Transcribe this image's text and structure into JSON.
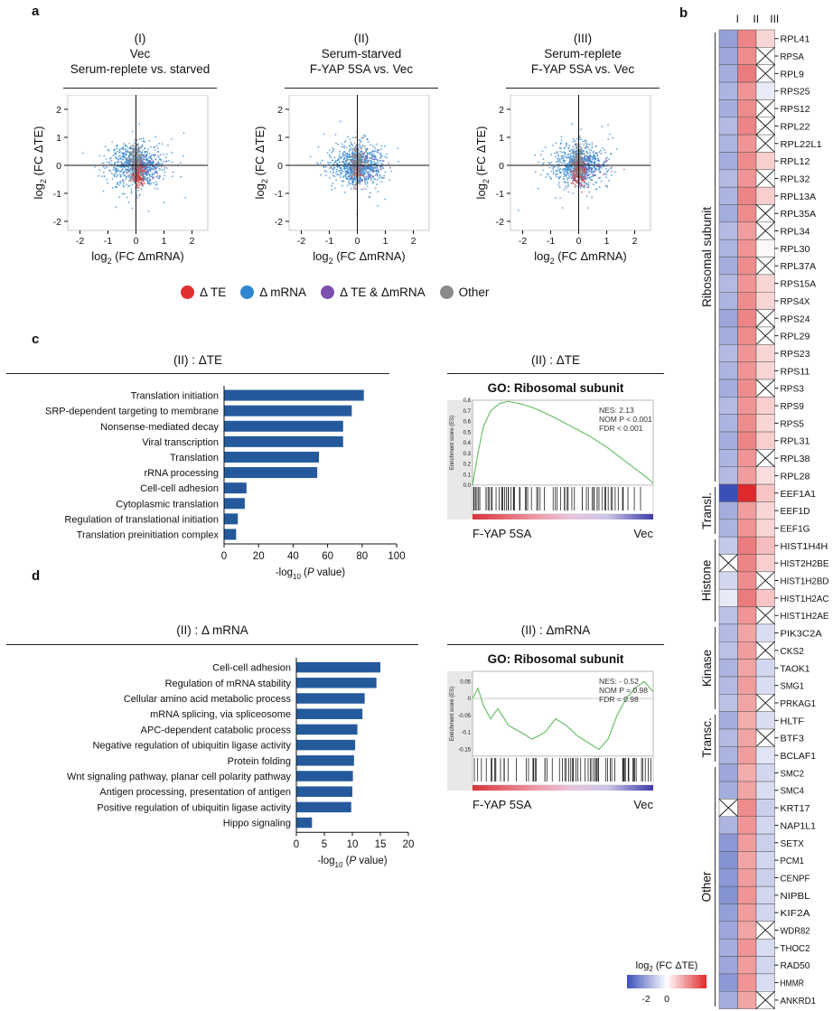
{
  "panels": {
    "a": "a",
    "b": "b",
    "c": "c",
    "d": "d"
  },
  "panel_a": {
    "scatters": [
      {
        "id": "I",
        "roman": "(I)",
        "line1": "Vec",
        "line2": "Serum-replete vs. starved"
      },
      {
        "id": "II",
        "roman": "(II)",
        "line1": "Serum-starved",
        "line2": "F-YAP 5SA vs. Vec"
      },
      {
        "id": "III",
        "roman": "(III)",
        "line1": "Serum-replete",
        "line2": "F-YAP 5SA vs. Vec"
      }
    ],
    "ylabel": "log2 (FC ΔTE)",
    "xlabel": "log2 (FC ΔmRNA)",
    "ticks": [
      "-2",
      "-1",
      "0",
      "1",
      "2"
    ],
    "legend": [
      {
        "label": "Δ TE",
        "color": "#e03030"
      },
      {
        "label": "Δ mRNA",
        "color": "#2f86d1"
      },
      {
        "label": "Δ TE & ΔmRNA",
        "color": "#7d4fb0"
      },
      {
        "label": "Other",
        "color": "#8a8a8a"
      }
    ]
  },
  "chart_data": [
    {
      "type": "bar",
      "title": "(II) : ΔTE",
      "categories": [
        "Translation initiation",
        "SRP-dependent targeting to membrane",
        "Nonsense-mediated decay",
        "Viral transcription",
        "Translation",
        "rRNA processing",
        "Cell-cell adhesion",
        "Cytoplasmic translation",
        "Regulation of translational initiation",
        "Translation preinitiation complex"
      ],
      "values": [
        81,
        74,
        69,
        69,
        55,
        54,
        13,
        12,
        8,
        7
      ],
      "xlabel": "-log10 (P value)",
      "xlim": [
        0,
        100
      ],
      "xticks": [
        "0",
        "20",
        "40",
        "60",
        "80",
        "100"
      ]
    },
    {
      "type": "bar",
      "title": "(II) : Δ mRNA",
      "categories": [
        "Cell-cell adhesion",
        "Regulation of mRNA stability",
        "Cellular amino acid metabolic process",
        "mRNA splicing, via spliceosome",
        "APC-dependent catabolic process",
        "Negative regulation of ubiquitin ligase activity",
        "Protein folding",
        "Wnt signaling pathway, planar cell polarity pathway",
        "Antigen processing, presentation of antigen",
        "Positive regulation of ubiquitin ligase activity",
        "Hippo signaling"
      ],
      "values": [
        15,
        14.3,
        12.2,
        11.8,
        10.9,
        10.5,
        10.3,
        10.1,
        10.0,
        9.8,
        2.8
      ],
      "xlabel": "-log10 (P value)",
      "xlim": [
        0,
        20
      ],
      "xticks": [
        "0",
        "5",
        "10",
        "15",
        "20"
      ]
    },
    {
      "type": "line",
      "title": "(II) : ΔTE",
      "subtitle": "GO: Ribosomal subunit",
      "ylabel": "Enrichment score (ES)",
      "yticks": [
        "0.8",
        "0.7",
        "0.6",
        "0.5",
        "0.4",
        "0.3",
        "0.2",
        "0.1",
        "0.0"
      ],
      "ylim": [
        0,
        0.8
      ],
      "stats": [
        "NES: 2.13",
        "NOM P < 0.001",
        "FDR < 0.001"
      ],
      "left_label": "F-YAP 5SA",
      "right_label": "Vec",
      "x": [
        0,
        0.03,
        0.06,
        0.1,
        0.15,
        0.2,
        0.28,
        0.35,
        0.45,
        0.55,
        0.65,
        0.75,
        0.85,
        0.95,
        1.0
      ],
      "y": [
        0,
        0.3,
        0.55,
        0.7,
        0.77,
        0.79,
        0.76,
        0.72,
        0.64,
        0.55,
        0.46,
        0.35,
        0.22,
        0.09,
        0.02
      ]
    },
    {
      "type": "line",
      "title": "(II) : ΔmRNA",
      "subtitle": "GO: Ribosomal subunit",
      "ylabel": "Enrichment score (ES)",
      "yticks": [
        "0.05",
        "0",
        "-0.05",
        "-0.1",
        "-0.15"
      ],
      "ylim": [
        -0.17,
        0.08
      ],
      "stats": [
        "NES: - 0.52",
        "NOM P = 0.98",
        "FDR = 0.98"
      ],
      "left_label": "F-YAP 5SA",
      "right_label": "Vec",
      "x": [
        0,
        0.03,
        0.06,
        0.1,
        0.14,
        0.2,
        0.27,
        0.33,
        0.4,
        0.46,
        0.52,
        0.58,
        0.64,
        0.7,
        0.75,
        0.8,
        0.85,
        0.9,
        0.95,
        1.0
      ],
      "y": [
        0,
        0.03,
        -0.02,
        -0.06,
        -0.03,
        -0.08,
        -0.1,
        -0.12,
        -0.1,
        -0.06,
        -0.08,
        -0.11,
        -0.13,
        -0.15,
        -0.12,
        -0.05,
        0.0,
        0.03,
        0.05,
        0.02
      ]
    },
    {
      "type": "heatmap",
      "columns": [
        "I",
        "II",
        "III"
      ],
      "rows": [
        "RPL41",
        "RPSA",
        "RPL9",
        "RPS25",
        "RPS12",
        "RPL22",
        "RPL22L1",
        "RPL12",
        "RPL32",
        "RPL13A",
        "RPL35A",
        "RPL34",
        "RPL30",
        "RPL37A",
        "RPS15A",
        "RPS4X",
        "RPS24",
        "RPL29",
        "RPS23",
        "RPS11",
        "RPS3",
        "RPS9",
        "RPS5",
        "RPL31",
        "RPL38",
        "RPL28",
        "EEF1A1",
        "EEF1D",
        "EEF1G",
        "HIST1H4H",
        "HIST2H2BE",
        "HIST1H2BD",
        "HIST1H2AC",
        "HIST1H2AE",
        "PIK3C2A",
        "CKS2",
        "TAOK1",
        "SMG1",
        "PRKAG1",
        "HLTF",
        "BTF3",
        "BCLAF1",
        "SMC2",
        "SMC4",
        "KRT17",
        "NAP1L1",
        "SETX",
        "PCM1",
        "CENPF",
        "NIPBL",
        "KIF2A",
        "WDR82",
        "THOC2",
        "RAD50",
        "HMMR",
        "ANKRD1"
      ],
      "values": [
        [
          -1.4,
          1.5,
          0.5
        ],
        [
          -1.3,
          1.4,
          null
        ],
        [
          -1.2,
          1.6,
          null
        ],
        [
          -1.1,
          1.3,
          -0.3
        ],
        [
          -1.2,
          1.4,
          null
        ],
        [
          -1.0,
          1.5,
          null
        ],
        [
          -1.1,
          1.3,
          null
        ],
        [
          -1.2,
          1.4,
          0.6
        ],
        [
          -1.0,
          1.3,
          null
        ],
        [
          -1.1,
          1.5,
          0.6
        ],
        [
          -1.2,
          1.4,
          null
        ],
        [
          -1.0,
          1.2,
          null
        ],
        [
          -1.1,
          1.3,
          0.1
        ],
        [
          -1.2,
          1.4,
          null
        ],
        [
          -1.0,
          1.3,
          0.5
        ],
        [
          -1.1,
          1.4,
          0.5
        ],
        [
          -1.3,
          1.5,
          null
        ],
        [
          -1.2,
          1.4,
          null
        ],
        [
          -1.0,
          1.3,
          0.5
        ],
        [
          -1.1,
          1.3,
          0.5
        ],
        [
          -1.2,
          1.4,
          null
        ],
        [
          -1.0,
          1.3,
          0.6
        ],
        [
          -1.1,
          1.4,
          0.5
        ],
        [
          -1.2,
          1.5,
          0.6
        ],
        [
          -1.1,
          1.3,
          null
        ],
        [
          -1.0,
          1.2,
          0.4
        ],
        [
          -2.6,
          2.6,
          0.7
        ],
        [
          -1.2,
          1.2,
          0.5
        ],
        [
          -1.1,
          1.3,
          0.5
        ],
        [
          -0.8,
          1.6,
          0.8
        ],
        [
          null,
          1.5,
          0.6
        ],
        [
          -0.6,
          1.4,
          null
        ],
        [
          -0.3,
          1.6,
          0.7
        ],
        [
          -0.9,
          1.3,
          null
        ],
        [
          -1.0,
          1.1,
          -0.5
        ],
        [
          -0.9,
          1.2,
          null
        ],
        [
          -1.1,
          1.1,
          -0.6
        ],
        [
          -1.0,
          1.2,
          -0.5
        ],
        [
          -0.9,
          1.1,
          null
        ],
        [
          -1.2,
          1.0,
          -0.5
        ],
        [
          -1.0,
          1.1,
          null
        ],
        [
          -1.1,
          1.2,
          -0.4
        ],
        [
          -1.3,
          1.0,
          -0.6
        ],
        [
          -1.2,
          1.1,
          -0.5
        ],
        [
          null,
          1.4,
          -0.7
        ],
        [
          -1.1,
          1.3,
          -0.6
        ],
        [
          -1.5,
          1.2,
          -0.7
        ],
        [
          -1.6,
          1.1,
          -0.6
        ],
        [
          -1.5,
          1.2,
          -0.7
        ],
        [
          -1.6,
          1.3,
          -0.6
        ],
        [
          -1.4,
          1.2,
          -0.6
        ],
        [
          -1.3,
          1.1,
          null
        ],
        [
          -1.2,
          1.3,
          -0.5
        ],
        [
          -1.3,
          1.2,
          -0.6
        ],
        [
          -1.5,
          1.3,
          -0.5
        ],
        [
          -1.2,
          1.1,
          null
        ]
      ],
      "groups": [
        "Ribosomal subunit",
        "Transl.",
        "Histone",
        "Kinase",
        "Transc.",
        "Other"
      ],
      "scale_title": "log2 (FC ΔTE)",
      "scale_ticks": [
        "-2",
        "0"
      ],
      "low_color": "#3a4fb8",
      "high_color": "#e0292b"
    }
  ]
}
